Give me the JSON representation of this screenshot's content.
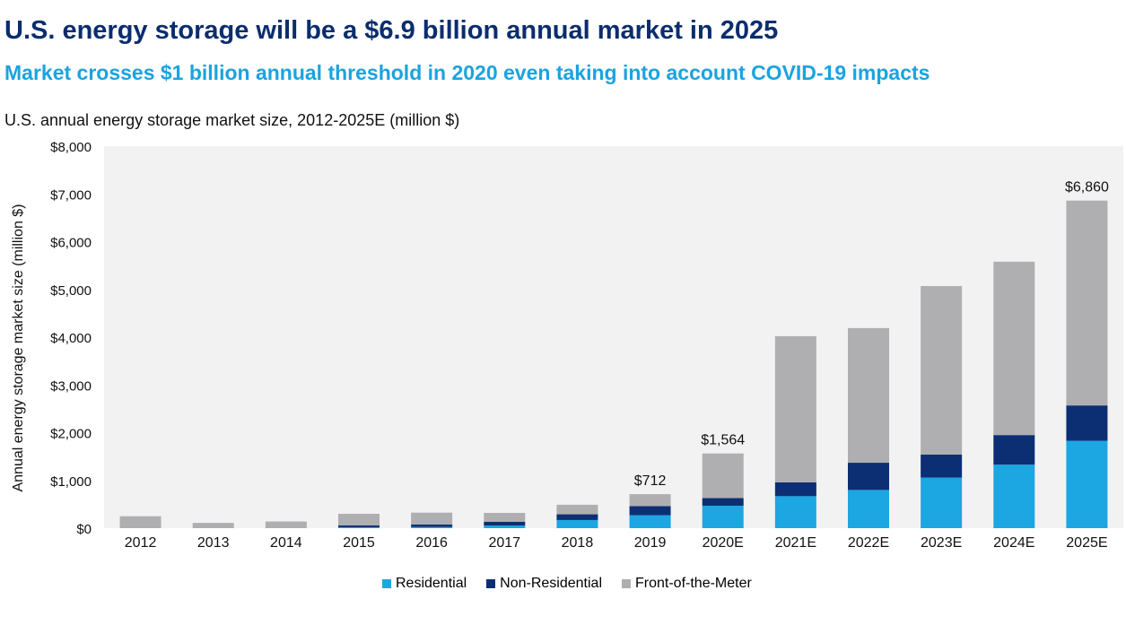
{
  "title": "U.S. energy storage will be a $6.9 billion annual market in 2025",
  "subtitle": "Market crosses $1 billion annual threshold in 2020 even taking into account COVID-19 impacts",
  "chart_caption": "U.S. annual energy storage market size, 2012-2025E (million $)",
  "chart_data": {
    "type": "bar",
    "stacked": true,
    "categories": [
      "2012",
      "2013",
      "2014",
      "2015",
      "2016",
      "2017",
      "2018",
      "2019",
      "2020E",
      "2021E",
      "2022E",
      "2023E",
      "2024E",
      "2025E"
    ],
    "series": [
      {
        "name": "Residential",
        "color": "#1ca6e2",
        "values": [
          0,
          0,
          0,
          20,
          25,
          55,
          170,
          270,
          470,
          670,
          800,
          1060,
          1330,
          1830
        ]
      },
      {
        "name": "Non-Residential",
        "color": "#0c2f74",
        "values": [
          0,
          0,
          0,
          40,
          50,
          80,
          120,
          190,
          160,
          290,
          570,
          480,
          620,
          740
        ]
      },
      {
        "name": "Front-of-the-Meter",
        "color": "#afafb1",
        "values": [
          250,
          110,
          140,
          240,
          250,
          185,
          200,
          252,
          934,
          3060,
          2820,
          3530,
          3630,
          4290
        ]
      }
    ],
    "data_labels": [
      {
        "category": "2019",
        "text": "$712"
      },
      {
        "category": "2020E",
        "text": "$1,564"
      },
      {
        "category": "2025E",
        "text": "$6,860"
      }
    ],
    "ylabel": "Annual energy storage market size (million $)",
    "xlabel": "",
    "ylim": [
      0,
      8000
    ],
    "yticks": [
      0,
      1000,
      2000,
      3000,
      4000,
      5000,
      6000,
      7000,
      8000
    ],
    "ytick_labels": [
      "$0",
      "$1,000",
      "$2,000",
      "$3,000",
      "$4,000",
      "$5,000",
      "$6,000",
      "$7,000",
      "$8,000"
    ],
    "plot_background": "#f2f2f2",
    "grid": false,
    "legend_position": "bottom"
  }
}
